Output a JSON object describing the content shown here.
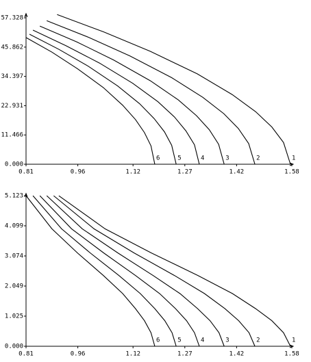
{
  "chart_data": [
    {
      "type": "line",
      "xlim": [
        0.81,
        1.58
      ],
      "xticks": [
        0.81,
        0.96,
        1.12,
        1.27,
        1.42,
        1.58
      ],
      "ylim": [
        0,
        59
      ],
      "yticks": [
        {
          "value": 0,
          "label": "0.000"
        },
        11.466,
        22.931,
        34.397,
        45.862,
        57.328
      ],
      "series": [
        {
          "name": "1",
          "color": "#000000",
          "x": [
            0.9,
            1.035,
            1.17,
            1.306,
            1.407,
            1.475,
            1.522,
            1.556,
            1.576
          ],
          "values": [
            58.6,
            51.8,
            44.2,
            35.4,
            27.3,
            20.6,
            14.6,
            8.5,
            0
          ]
        },
        {
          "name": "2",
          "color": "#000000",
          "x": [
            0.87,
            0.991,
            1.111,
            1.232,
            1.322,
            1.383,
            1.425,
            1.455,
            1.473
          ],
          "values": [
            56.2,
            49.7,
            42.4,
            33.9,
            26.2,
            19.8,
            14.0,
            8.1,
            0
          ]
        },
        {
          "name": "3",
          "color": "#000000",
          "x": [
            0.85,
            0.957,
            1.064,
            1.17,
            1.251,
            1.304,
            1.341,
            1.368,
            1.384
          ],
          "values": [
            54.1,
            47.9,
            40.8,
            32.7,
            25.2,
            19.0,
            13.5,
            7.8,
            0
          ]
        },
        {
          "name": "4",
          "color": "#000000",
          "x": [
            0.83,
            0.926,
            1.023,
            1.119,
            1.192,
            1.24,
            1.273,
            1.298,
            1.312
          ],
          "values": [
            52.5,
            46.4,
            39.6,
            31.7,
            24.5,
            18.5,
            13.1,
            7.6,
            0
          ]
        },
        {
          "name": "5",
          "color": "#000000",
          "x": [
            0.82,
            0.905,
            0.99,
            1.075,
            1.139,
            1.181,
            1.211,
            1.232,
            1.245
          ],
          "values": [
            50.9,
            45.0,
            38.4,
            30.7,
            23.7,
            17.9,
            12.7,
            7.4,
            0
          ]
        },
        {
          "name": "6",
          "color": "#000000",
          "x": [
            0.81,
            0.885,
            0.959,
            1.034,
            1.09,
            1.127,
            1.153,
            1.172,
            1.183
          ],
          "values": [
            49.6,
            43.9,
            37.4,
            30.0,
            23.1,
            17.5,
            12.4,
            7.2,
            0
          ]
        }
      ]
    },
    {
      "type": "line",
      "xlim": [
        0.81,
        1.58
      ],
      "xticks": [
        0.81,
        0.96,
        1.12,
        1.27,
        1.42,
        1.58
      ],
      "ylim": [
        0,
        5.2
      ],
      "yticks": [
        {
          "value": 0,
          "label": "0.000"
        },
        1.025,
        2.049,
        3.074,
        4.099,
        5.123
      ],
      "series": [
        {
          "name": "1",
          "color": "#000000",
          "x": [
            0.905,
            1.039,
            1.173,
            1.308,
            1.408,
            1.475,
            1.522,
            1.556,
            1.576
          ],
          "values": [
            5.123,
            3.996,
            3.176,
            2.408,
            1.793,
            1.281,
            0.871,
            0.461,
            0
          ]
        },
        {
          "name": "2",
          "color": "#000000",
          "x": [
            0.89,
            1.007,
            1.123,
            1.24,
            1.327,
            1.386,
            1.426,
            1.456,
            1.473
          ],
          "values": [
            5.123,
            3.996,
            3.176,
            2.408,
            1.793,
            1.281,
            0.871,
            0.461,
            0
          ]
        },
        {
          "name": "3",
          "color": "#000000",
          "x": [
            0.87,
            0.973,
            1.076,
            1.178,
            1.256,
            1.307,
            1.343,
            1.369,
            1.384
          ],
          "values": [
            5.123,
            3.996,
            3.176,
            2.408,
            1.793,
            1.281,
            0.871,
            0.461,
            0
          ]
        },
        {
          "name": "4",
          "color": "#000000",
          "x": [
            0.85,
            0.942,
            1.035,
            1.127,
            1.197,
            1.243,
            1.275,
            1.298,
            1.312
          ],
          "values": [
            5.123,
            3.996,
            3.176,
            2.408,
            1.793,
            1.281,
            0.871,
            0.461,
            0
          ]
        },
        {
          "name": "5",
          "color": "#000000",
          "x": [
            0.83,
            0.913,
            0.996,
            1.079,
            1.141,
            1.183,
            1.212,
            1.233,
            1.245
          ],
          "values": [
            5.123,
            3.996,
            3.176,
            2.408,
            1.793,
            1.281,
            0.871,
            0.461,
            0
          ]
        },
        {
          "name": "6",
          "color": "#000000",
          "x": [
            0.81,
            0.885,
            0.959,
            1.034,
            1.09,
            1.127,
            1.153,
            1.172,
            1.183
          ],
          "values": [
            5.123,
            3.996,
            3.176,
            2.408,
            1.793,
            1.281,
            0.871,
            0.461,
            0
          ]
        }
      ]
    }
  ]
}
